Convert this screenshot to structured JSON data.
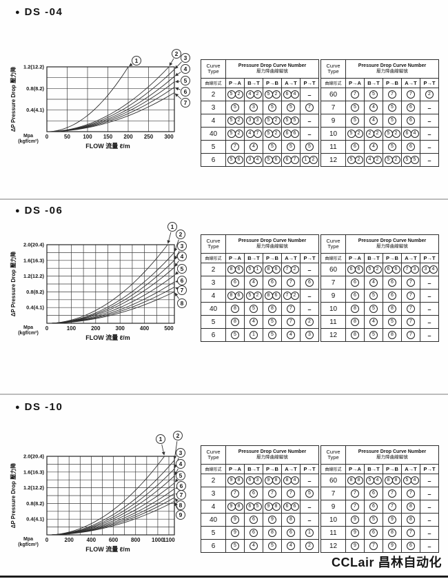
{
  "ui": {
    "bullet": "●"
  },
  "footer": {
    "logo": "CCLair 昌林自动化"
  },
  "table_header": {
    "curve_type_line1": "Curve",
    "curve_type_line2": "Type",
    "curve_type_zh": "曲線形式",
    "title_en": "Pressure Drop Curve Number",
    "title_zh": "壓力降曲線編號",
    "columns": [
      "P→A",
      "B→T",
      "P→B",
      "A→T",
      "P→T"
    ]
  },
  "sections": [
    {
      "title": "DS -04",
      "chart_ref": 0,
      "tables": [
        {
          "rows": [
            {
              "type": "2",
              "cells": [
                "52",
                "42",
                "52",
                "64",
                "-"
              ]
            },
            {
              "type": "3",
              "cells": [
                "5",
                "3",
                "5",
                "5",
                "7"
              ]
            },
            {
              "type": "4",
              "cells": [
                "52",
                "33",
                "52",
                "55",
                "-"
              ]
            },
            {
              "type": "40",
              "cells": [
                "52",
                "47",
                "52",
                "66",
                "-"
              ]
            },
            {
              "type": "5",
              "cells": [
                "7",
                "4",
                "5",
                "5",
                "5"
              ]
            },
            {
              "type": "6",
              "cells": [
                "56",
                "34",
                "56",
                "67",
                "12"
              ]
            }
          ]
        },
        {
          "rows": [
            {
              "type": "60",
              "cells": [
                "7",
                "5",
                "7",
                "7",
                "2"
              ]
            },
            {
              "type": "7",
              "cells": [
                "5",
                "4",
                "5",
                "6",
                "-"
              ]
            },
            {
              "type": "9",
              "cells": [
                "5",
                "4",
                "5",
                "6",
                "-"
              ]
            },
            {
              "type": "10",
              "cells": [
                "52",
                "22",
                "52",
                "64",
                "-"
              ]
            },
            {
              "type": "11",
              "cells": [
                "6",
                "4",
                "5",
                "6",
                "-"
              ]
            },
            {
              "type": "12",
              "cells": [
                "52",
                "42",
                "52",
                "55",
                "-"
              ]
            }
          ]
        }
      ]
    },
    {
      "title": "DS -06",
      "chart_ref": 1,
      "tables": [
        {
          "rows": [
            {
              "type": "2",
              "cells": [
                "86",
                "51",
                "86",
                "72",
                "-"
              ]
            },
            {
              "type": "3",
              "cells": [
                "6",
                "4",
                "6",
                "7",
                "6"
              ]
            },
            {
              "type": "4",
              "cells": [
                "86",
                "52",
                "86",
                "72",
                "-"
              ]
            },
            {
              "type": "40",
              "cells": [
                "8",
                "5",
                "8",
                "7",
                "-"
              ]
            },
            {
              "type": "5",
              "cells": [
                "8",
                "4",
                "5",
                "7",
                "2"
              ]
            },
            {
              "type": "6",
              "cells": [
                "5",
                "1",
                "5",
                "4",
                "3"
              ]
            }
          ]
        },
        {
          "rows": [
            {
              "type": "60",
              "cells": [
                "66",
                "52",
                "66",
                "73",
                "34"
              ]
            },
            {
              "type": "7",
              "cells": [
                "6",
                "4",
                "6",
                "7",
                "-"
              ]
            },
            {
              "type": "9",
              "cells": [
                "6",
                "5",
                "6",
                "7",
                "-"
              ]
            },
            {
              "type": "10",
              "cells": [
                "8",
                "5",
                "8",
                "7",
                "-"
              ]
            },
            {
              "type": "11",
              "cells": [
                "8",
                "4",
                "5",
                "7",
                "-"
              ]
            },
            {
              "type": "12",
              "cells": [
                "8",
                "5",
                "8",
                "7",
                "-"
              ]
            }
          ]
        }
      ]
    },
    {
      "title": "DS -10",
      "chart_ref": 2,
      "tables": [
        {
          "rows": [
            {
              "type": "2",
              "cells": [
                "98",
                "63",
                "98",
                "84",
                "-"
              ]
            },
            {
              "type": "3",
              "cells": [
                "7",
                "6",
                "7",
                "7",
                "5"
              ]
            },
            {
              "type": "4",
              "cells": [
                "98",
                "65",
                "98",
                "66",
                "-"
              ]
            },
            {
              "type": "40",
              "cells": [
                "9",
                "6",
                "9",
                "8",
                "-"
              ]
            },
            {
              "type": "5",
              "cells": [
                "9",
                "6",
                "8",
                "6",
                "1"
              ]
            },
            {
              "type": "6",
              "cells": [
                "5",
                "4",
                "5",
                "4",
                "2"
              ]
            }
          ]
        },
        {
          "rows": [
            {
              "type": "60",
              "cells": [
                "88",
                "54",
                "88",
                "54",
                "-"
              ]
            },
            {
              "type": "7",
              "cells": [
                "7",
                "6",
                "7",
                "7",
                "-"
              ]
            },
            {
              "type": "9",
              "cells": [
                "7",
                "6",
                "7",
                "8",
                "-"
              ]
            },
            {
              "type": "10",
              "cells": [
                "9",
                "5",
                "9",
                "8",
                "-"
              ]
            },
            {
              "type": "11",
              "cells": [
                "9",
                "6",
                "8",
                "7",
                "-"
              ]
            },
            {
              "type": "12",
              "cells": [
                "9",
                "7",
                "9",
                "6",
                "-"
              ]
            }
          ]
        }
      ]
    }
  ],
  "chart_data": [
    {
      "type": "line",
      "title": "DS-04 pressure drop curves",
      "xlabel": "FLOW 流量 ℓ/m",
      "ylabel": "ΔP Pressure Drop 壓力降",
      "y_unit_line1": "Mpa",
      "y_unit_line2": "(kgf/cm²)",
      "x_ticks": [
        0,
        50,
        100,
        150,
        200,
        250,
        300
      ],
      "x_grid_step": 50,
      "y_ticks": [
        {
          "value": 1.2,
          "label": "1.2(12.2)"
        },
        {
          "value": 0.8,
          "label": "0.8(8.2)"
        },
        {
          "value": 0.4,
          "label": "0.4(4.1)"
        }
      ],
      "y_grid_step": 0.2,
      "xlim": [
        0,
        313
      ],
      "ylim": [
        0,
        1.2
      ],
      "legend_position": "right",
      "curves": [
        {
          "label": "1",
          "end": [
            200,
            1.2
          ]
        },
        {
          "label": "2",
          "end": [
            300,
            1.2
          ]
        },
        {
          "label": "3",
          "end": [
            313,
            1.15
          ]
        },
        {
          "label": "4",
          "end": [
            313,
            1.02
          ]
        },
        {
          "label": "5",
          "end": [
            313,
            0.92
          ]
        },
        {
          "label": "6",
          "end": [
            313,
            0.82
          ]
        },
        {
          "label": "7",
          "end": [
            313,
            0.72
          ]
        }
      ]
    },
    {
      "type": "line",
      "title": "DS-06 pressure drop curves",
      "xlabel": "FLOW 流量 ℓ/m",
      "ylabel": "ΔP Pressure Drop 壓力降",
      "y_unit_line1": "Mpa",
      "y_unit_line2": "(kgf/cm²)",
      "x_ticks": [
        0,
        100,
        200,
        300,
        400,
        500
      ],
      "x_grid_step": 50,
      "y_ticks": [
        {
          "value": 2.0,
          "label": "2.0(20.4)"
        },
        {
          "value": 1.6,
          "label": "1.6(16.3)"
        },
        {
          "value": 1.2,
          "label": "1.2(12.2)"
        },
        {
          "value": 0.8,
          "label": "0.8(8.2)"
        },
        {
          "value": 0.4,
          "label": "0.4(4.1)"
        }
      ],
      "y_grid_step": 0.2,
      "xlim": [
        0,
        522
      ],
      "ylim": [
        0,
        2.0
      ],
      "legend_position": "right",
      "curves": [
        {
          "label": "1",
          "end": [
            495,
            2.0
          ]
        },
        {
          "label": "2",
          "end": [
            522,
            1.8
          ]
        },
        {
          "label": "3",
          "end": [
            522,
            1.6
          ]
        },
        {
          "label": "4",
          "end": [
            522,
            1.42
          ]
        },
        {
          "label": "5",
          "end": [
            522,
            1.22
          ]
        },
        {
          "label": "6",
          "end": [
            522,
            1.05
          ]
        },
        {
          "label": "7",
          "end": [
            522,
            0.92
          ]
        },
        {
          "label": "8",
          "end": [
            522,
            0.8
          ]
        }
      ]
    },
    {
      "type": "line",
      "title": "DS-10 pressure drop curves",
      "xlabel": "FLOW 流量 ℓ/m",
      "ylabel": "ΔP Pressure Drop 壓力降",
      "y_unit_line1": "Mpa",
      "y_unit_line2": "(kgf/cm²)",
      "x_ticks": [
        0,
        200,
        400,
        600,
        800,
        1000,
        1100
      ],
      "x_grid_step": 100,
      "y_ticks": [
        {
          "value": 2.0,
          "label": "2.0(20.4)"
        },
        {
          "value": 1.6,
          "label": "1.6(16.3)"
        },
        {
          "value": 1.2,
          "label": "1.2(12.2)"
        },
        {
          "value": 0.8,
          "label": "0.8(8.2)"
        },
        {
          "value": 0.4,
          "label": "0.4(4.1)"
        }
      ],
      "y_grid_step": 0.2,
      "xlim": [
        0,
        1150
      ],
      "ylim": [
        0,
        2.0
      ],
      "legend_position": "right",
      "curves": [
        {
          "label": "1",
          "end": [
            1060,
            2.0
          ]
        },
        {
          "label": "2",
          "end": [
            1150,
            1.9
          ]
        },
        {
          "label": "3",
          "end": [
            1150,
            1.68
          ]
        },
        {
          "label": "4",
          "end": [
            1150,
            1.5
          ]
        },
        {
          "label": "5",
          "end": [
            1150,
            1.32
          ]
        },
        {
          "label": "6",
          "end": [
            1150,
            1.17
          ]
        },
        {
          "label": "7",
          "end": [
            1150,
            1.05
          ]
        },
        {
          "label": "8",
          "end": [
            1150,
            0.95
          ]
        },
        {
          "label": "9",
          "end": [
            1150,
            0.85
          ]
        }
      ]
    }
  ]
}
